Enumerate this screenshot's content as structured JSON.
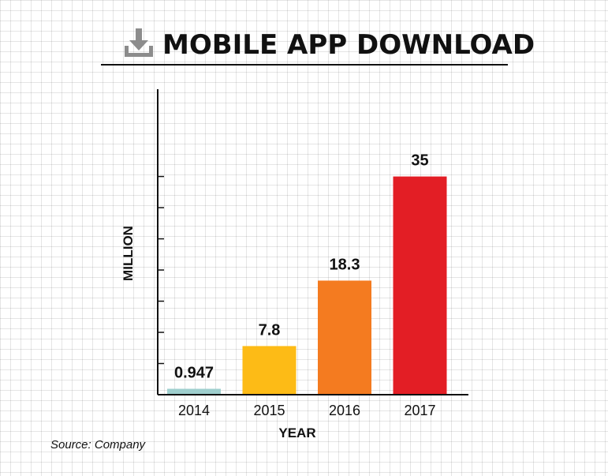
{
  "chart_data": {
    "type": "bar",
    "title": "MOBILE APP DOWNLOAD",
    "title_icon": "download-icon",
    "categories": [
      "2014",
      "2015",
      "2016",
      "2017"
    ],
    "values": [
      0.947,
      7.8,
      18.3,
      35
    ],
    "value_labels": [
      "0.947",
      "7.8",
      "18.3",
      "35"
    ],
    "colors": [
      "#9fcfce",
      "#fdbb16",
      "#f47b20",
      "#e31e25"
    ],
    "xlabel": "YEAR",
    "ylabel": "MILLION",
    "ylim": [
      0,
      49
    ],
    "grid": true,
    "legend": "none"
  },
  "source": "Source: Company"
}
